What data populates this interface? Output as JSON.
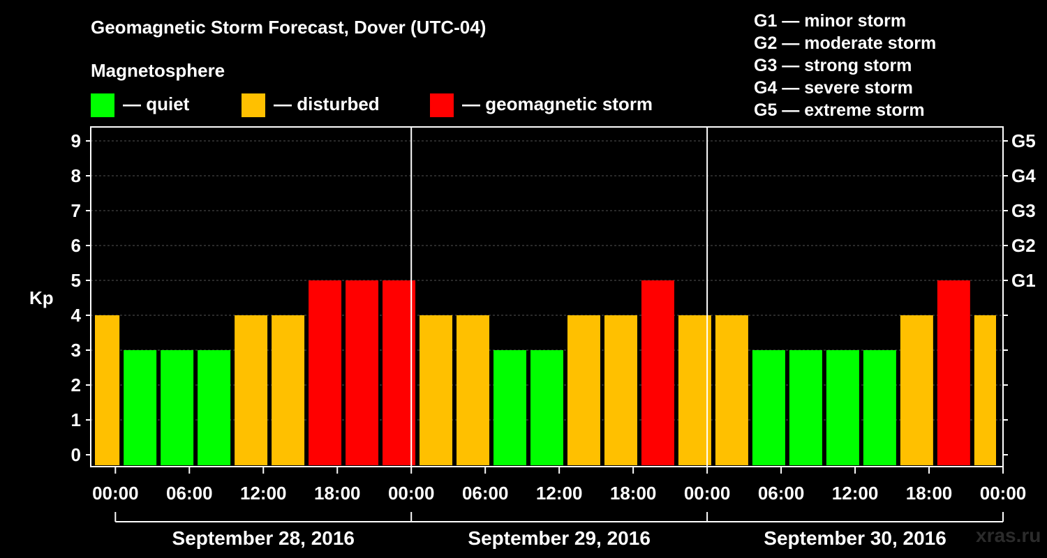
{
  "chart_data": {
    "type": "bar",
    "title": "Geomagnetic Storm Forecast, Dover (UTC-04)",
    "subtitle": "Magnetosphere",
    "ylabel": "Kp",
    "ylim": [
      0,
      9
    ],
    "yticks": [
      "0",
      "1",
      "2",
      "3",
      "4",
      "5",
      "6",
      "7",
      "8",
      "9"
    ],
    "right_ticks": [
      {
        "kp": 5,
        "label": "G1"
      },
      {
        "kp": 6,
        "label": "G2"
      },
      {
        "kp": 7,
        "label": "G3"
      },
      {
        "kp": 8,
        "label": "G4"
      },
      {
        "kp": 9,
        "label": "G5"
      }
    ],
    "legend": [
      {
        "label": "— quiet",
        "color": "#00ff00"
      },
      {
        "label": "— disturbed",
        "color": "#ffc000"
      },
      {
        "label": "— geomagnetic storm",
        "color": "#ff0000"
      }
    ],
    "storm_scale": [
      "G1 — minor storm",
      "G2 — moderate storm",
      "G3 — strong storm",
      "G4 — severe storm",
      "G5 — extreme storm"
    ],
    "xticks": [
      "00:00",
      "06:00",
      "12:00",
      "18:00",
      "00:00",
      "06:00",
      "12:00",
      "18:00",
      "00:00",
      "06:00",
      "12:00",
      "18:00",
      "00:00"
    ],
    "days": [
      "September 28, 2016",
      "September 29, 2016",
      "September 30, 2016"
    ],
    "time_range_hours": [
      -2,
      72
    ],
    "series": [
      {
        "interval_hours": 3,
        "start_hours": -1,
        "values": [
          4,
          3,
          3,
          3,
          4,
          4,
          5,
          5,
          5,
          4,
          4,
          3,
          3,
          4,
          4,
          5,
          4,
          4,
          3,
          3,
          3,
          3,
          4,
          5,
          4
        ],
        "classes": [
          "disturbed",
          "quiet",
          "quiet",
          "quiet",
          "disturbed",
          "disturbed",
          "storm",
          "storm",
          "storm",
          "disturbed",
          "disturbed",
          "quiet",
          "quiet",
          "disturbed",
          "disturbed",
          "storm",
          "disturbed",
          "disturbed",
          "quiet",
          "quiet",
          "quiet",
          "quiet",
          "disturbed",
          "storm",
          "disturbed"
        ]
      }
    ],
    "colors": {
      "quiet": "#00ff00",
      "disturbed": "#ffc000",
      "storm": "#ff0000"
    },
    "grid": true,
    "watermark": "xras.ru"
  }
}
